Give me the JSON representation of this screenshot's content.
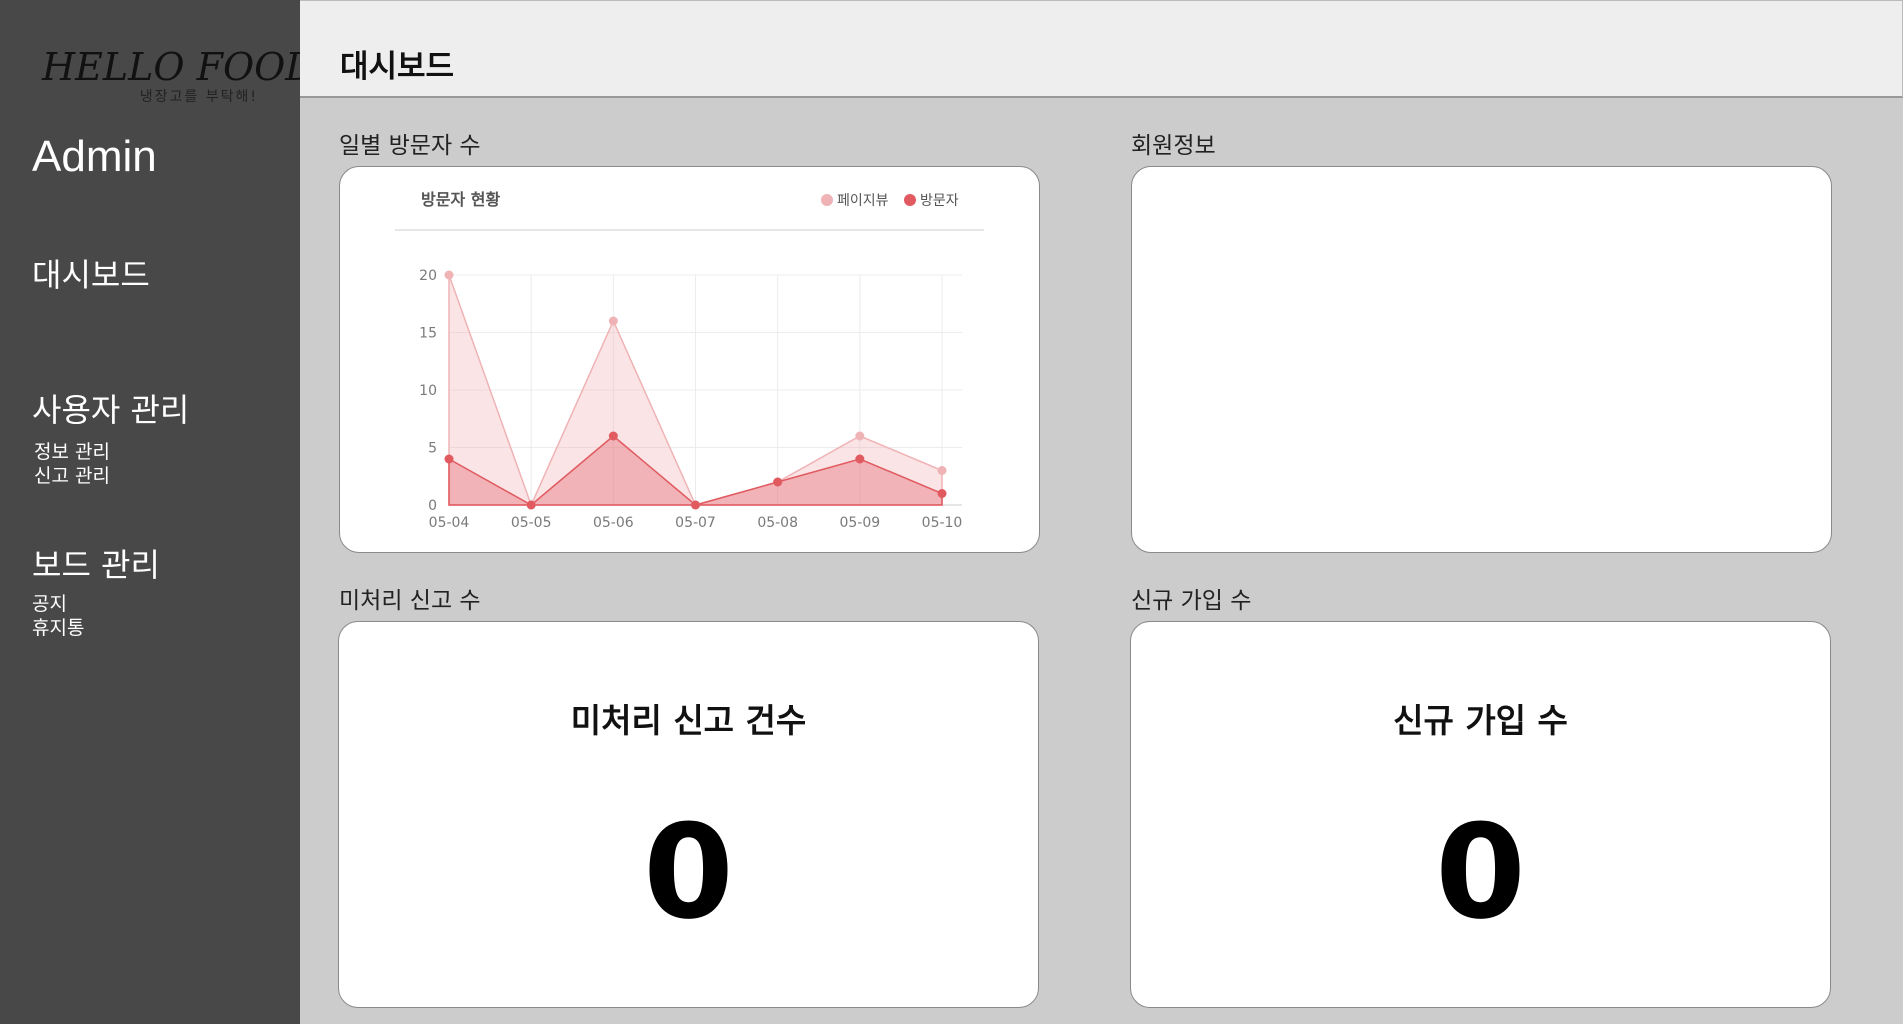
{
  "sidebar": {
    "logo_text": "HELLO FOOD",
    "logo_sub": "냉장고를 부탁해!",
    "admin_label": "Admin",
    "dashboard": "대시보드",
    "user_mgmt": "사용자 관리",
    "user_sub": [
      "정보 관리",
      "신고 관리"
    ],
    "board_mgmt": "보드 관리",
    "board_sub": [
      "공지",
      "휴지통"
    ]
  },
  "header": {
    "title": "대시보드"
  },
  "sections": {
    "visitors": "일별 방문자 수",
    "members": "회원정보",
    "reports": "미처리 신고 수",
    "signups": "신규 가입 수"
  },
  "stats": {
    "reports_title": "미처리 신고 건수",
    "reports_value": "0",
    "signups_title": "신규 가입 수",
    "signups_value": "0"
  },
  "chart_data": {
    "type": "area",
    "title": "방문자 현황",
    "x": [
      "05-04",
      "05-05",
      "05-06",
      "05-07",
      "05-08",
      "05-09",
      "05-10"
    ],
    "series": [
      {
        "name": "페이지뷰",
        "values": [
          20,
          0,
          16,
          0,
          2,
          6,
          3
        ],
        "color": "#f0b3b5"
      },
      {
        "name": "방문자",
        "values": [
          4,
          0,
          6,
          0,
          2,
          4,
          1
        ],
        "color": "#e05a60"
      }
    ],
    "yticks": [
      "0",
      "5",
      "10",
      "15",
      "20"
    ],
    "ylim": [
      0,
      20
    ],
    "legend": "top-right",
    "grid": true
  }
}
